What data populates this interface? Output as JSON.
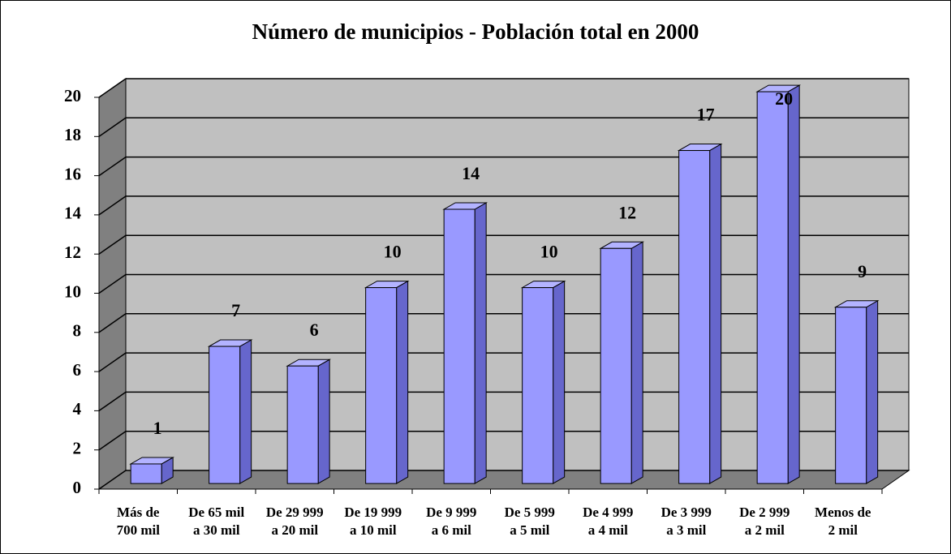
{
  "chart_data": {
    "type": "bar3d",
    "title": "Número de municipios - Población total en 2000",
    "categories": [
      "Más de\n700 mil",
      "De 65 mil\na 30 mil",
      "De 29 999\na 20 mil",
      "De 19 999\na 10 mil",
      "De 9 999\na 6 mil",
      "De 5 999\na 5 mil",
      "De 4 999\na 4 mil",
      "De 3 999\na 3 mil",
      "De 2 999\na 2 mil",
      "Menos de\n2 mil"
    ],
    "values": [
      1,
      7,
      6,
      10,
      14,
      10,
      12,
      17,
      20,
      9
    ],
    "color": "#9999ff",
    "ylim": [
      0,
      20
    ],
    "yticks": [
      0,
      2,
      4,
      6,
      8,
      10,
      12,
      14,
      16,
      18,
      20
    ],
    "grid": true
  }
}
